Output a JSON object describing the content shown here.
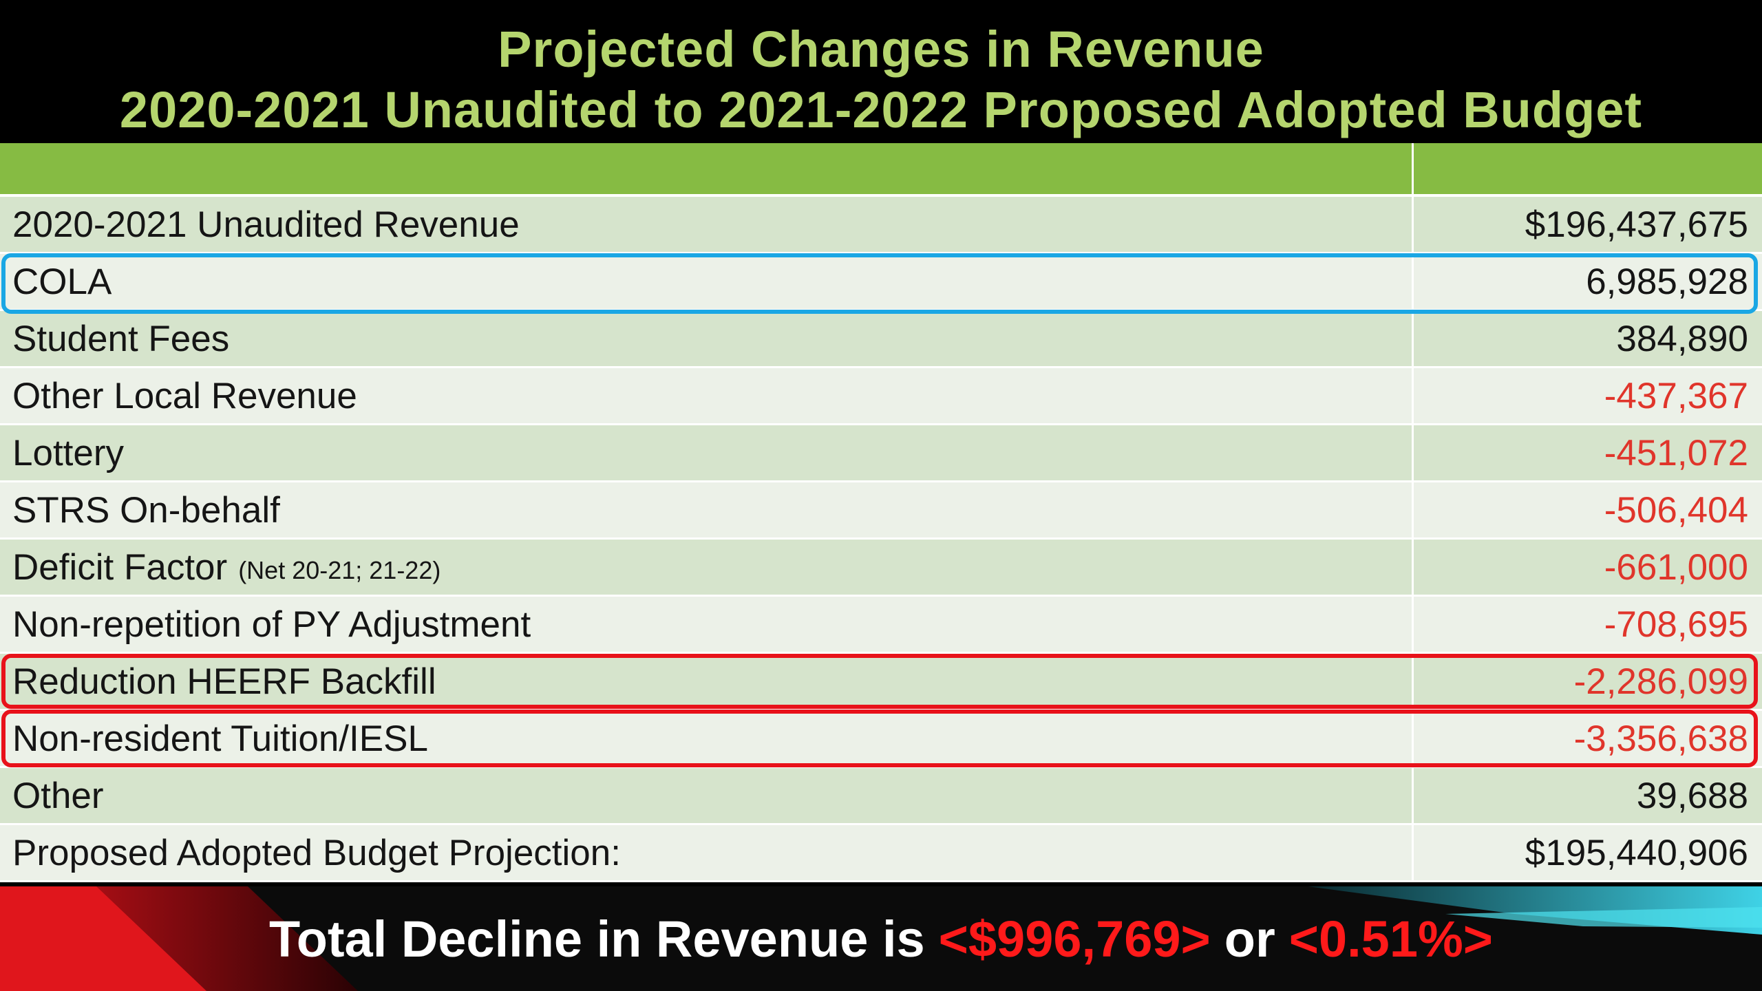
{
  "title": {
    "line1": "Projected Changes in Revenue",
    "line2": "2020-2021 Unaudited to 2021-2022 Proposed Adopted Budget"
  },
  "table": {
    "rows": [
      {
        "label": "2020-2021 Unaudited Revenue",
        "note": "",
        "value": "$196,437,675"
      },
      {
        "label": "COLA",
        "note": "",
        "value": "6,985,928"
      },
      {
        "label": "Student Fees",
        "note": "",
        "value": "384,890"
      },
      {
        "label": "Other Local Revenue",
        "note": "",
        "value": "-437,367"
      },
      {
        "label": "Lottery",
        "note": "",
        "value": "-451,072"
      },
      {
        "label": "STRS On-behalf",
        "note": "",
        "value": "-506,404"
      },
      {
        "label": "Deficit Factor",
        "note": "(Net 20-21; 21-22)",
        "value": "-661,000"
      },
      {
        "label": "Non-repetition of PY Adjustment",
        "note": "",
        "value": "-708,695"
      },
      {
        "label": "Reduction HEERF Backfill",
        "note": "",
        "value": "-2,286,099"
      },
      {
        "label": "Non-resident Tuition/IESL",
        "note": "",
        "value": "-3,356,638"
      },
      {
        "label": "Other",
        "note": "",
        "value": "39,688"
      },
      {
        "label": "Proposed Adopted Budget Projection:",
        "note": "",
        "value": "$195,440,906"
      }
    ]
  },
  "banner": {
    "prefix": "Total Decline in Revenue is",
    "amount": "<$996,769>",
    "conjunction": "or",
    "percent": "<0.51%>"
  },
  "colors": {
    "title": "#b5d56e",
    "header": "#86bb43",
    "negative": "#e0352b",
    "highlight_blue": "#1aa7e4",
    "highlight_red": "#e8121a"
  }
}
